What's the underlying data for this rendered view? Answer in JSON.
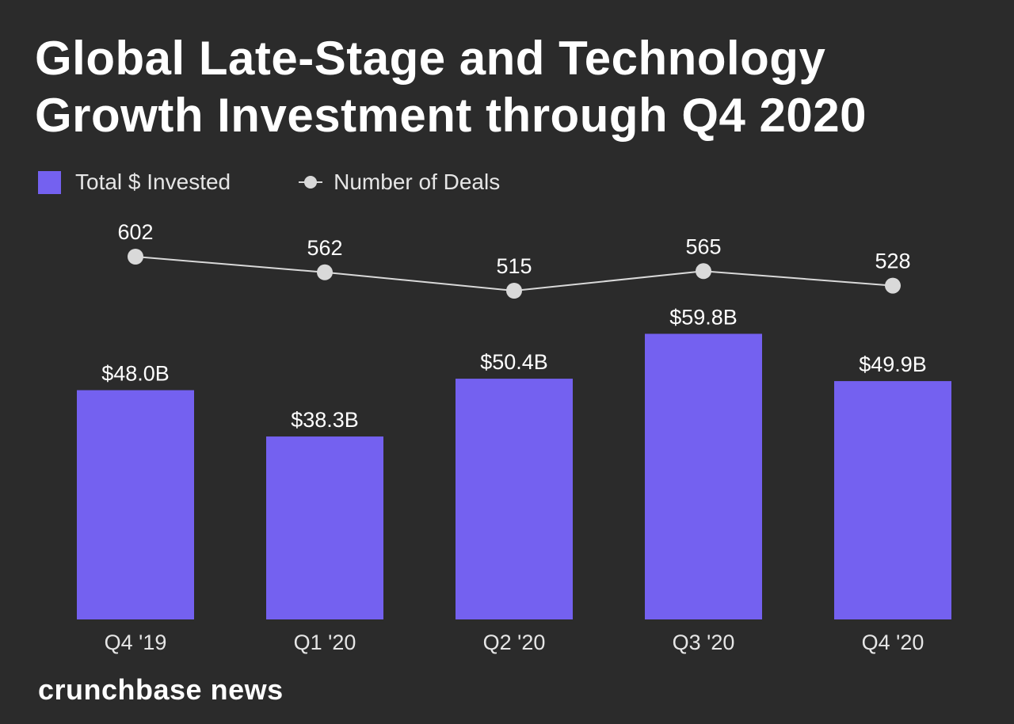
{
  "chart_data": {
    "type": "bar",
    "title": "Global Late-Stage and Technology Growth Investment through Q4 2020",
    "title_lines": [
      "Global Late-Stage and Technology",
      "Growth Investment through Q4 2020"
    ],
    "categories": [
      "Q4 '19",
      "Q1 '20",
      "Q2 '20",
      "Q3 '20",
      "Q4 '20"
    ],
    "series": [
      {
        "name": "Total $ Invested",
        "type": "bar",
        "values": [
          48.0,
          38.3,
          50.4,
          59.8,
          49.9
        ],
        "labels": [
          "$48.0B",
          "$38.3B",
          "$50.4B",
          "$59.8B",
          "$49.9B"
        ],
        "color": "#7461f0"
      },
      {
        "name": "Number of Deals",
        "type": "line",
        "values": [
          602,
          562,
          515,
          565,
          528
        ],
        "labels": [
          "602",
          "562",
          "515",
          "565",
          "528"
        ],
        "color": "#d9d9d9"
      }
    ],
    "ylim": [
      0,
      60
    ],
    "grid": false,
    "legend_position": "top-left"
  },
  "brand": "crunchbase news"
}
